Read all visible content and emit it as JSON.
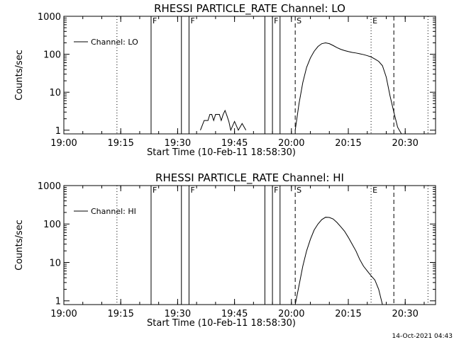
{
  "footer_timestamp": "14-Oct-2021 04:43",
  "chart_data": [
    {
      "type": "line",
      "title": "RHESSI PARTICLE_RATE Channel: LO",
      "xlabel": "Start Time (10-Feb-11 18:58:30)",
      "ylabel": "Counts/sec",
      "y_scale": "log",
      "ylim": [
        0.8,
        1000
      ],
      "y_tick_values": [
        1,
        10,
        100,
        1000
      ],
      "y_tick_labels": [
        "1",
        "10",
        "100",
        "1000"
      ],
      "xlim": [
        "19:00",
        "20:38"
      ],
      "x_tick_labels": [
        "19:00",
        "19:15",
        "19:30",
        "19:45",
        "20:00",
        "20:15",
        "20:30"
      ],
      "legend": {
        "position": "top-left",
        "entries": [
          "Channel: LO"
        ]
      },
      "vertical_markers": [
        {
          "label": "F",
          "time": "19:23",
          "style": "solid"
        },
        {
          "label": "",
          "time": "19:31",
          "style": "solid"
        },
        {
          "label": "F",
          "time": "19:33",
          "style": "solid"
        },
        {
          "label": "",
          "time": "19:53",
          "style": "solid"
        },
        {
          "label": "F",
          "time": "19:55",
          "style": "solid"
        },
        {
          "label": "",
          "time": "19:57",
          "style": "solid"
        },
        {
          "label": "S",
          "time": "20:01",
          "style": "dashed"
        },
        {
          "label": "E",
          "time": "20:21",
          "style": "dotted"
        },
        {
          "label": "",
          "time": "20:27",
          "style": "dashed"
        },
        {
          "label": "",
          "time": "19:14",
          "style": "dotted"
        },
        {
          "label": "",
          "time": "20:36",
          "style": "dotted"
        }
      ],
      "series": [
        {
          "name": "Channel: LO",
          "segments": [
            [
              [
                "19:36",
                1.0
              ],
              [
                "19:37",
                1.8
              ],
              [
                "19:38",
                1.8
              ],
              [
                "19:38.5",
                2.6
              ],
              [
                "19:39",
                2.6
              ],
              [
                "19:39.5",
                1.8
              ],
              [
                "19:40",
                2.6
              ],
              [
                "19:41",
                2.6
              ],
              [
                "19:41.5",
                1.8
              ],
              [
                "19:42",
                2.6
              ],
              [
                "19:42.5",
                3.3
              ],
              [
                "19:43",
                2.4
              ],
              [
                "19:43.5",
                1.7
              ],
              [
                "19:44",
                1.0
              ],
              [
                "19:45",
                1.7
              ],
              [
                "19:46",
                1.0
              ],
              [
                "19:47",
                1.5
              ],
              [
                "19:48",
                1.0
              ]
            ],
            [
              [
                "20:01",
                1.0
              ],
              [
                "20:02",
                5
              ],
              [
                "20:03",
                18
              ],
              [
                "20:04",
                45
              ],
              [
                "20:05",
                80
              ],
              [
                "20:06",
                120
              ],
              [
                "20:07",
                160
              ],
              [
                "20:08",
                190
              ],
              [
                "20:09",
                200
              ],
              [
                "20:10",
                190
              ],
              [
                "20:11",
                170
              ],
              [
                "20:12",
                150
              ],
              [
                "20:13",
                135
              ],
              [
                "20:14",
                125
              ],
              [
                "20:15",
                118
              ],
              [
                "20:16",
                112
              ],
              [
                "20:17",
                108
              ],
              [
                "20:18",
                103
              ],
              [
                "20:19",
                98
              ],
              [
                "20:20",
                92
              ],
              [
                "20:21",
                85
              ],
              [
                "20:22",
                75
              ],
              [
                "20:23",
                65
              ],
              [
                "20:24",
                50
              ],
              [
                "20:25",
                25
              ],
              [
                "20:26",
                8
              ],
              [
                "20:27",
                3
              ],
              [
                "20:28",
                1.2
              ],
              [
                "20:29",
                0.8
              ]
            ]
          ]
        }
      ]
    },
    {
      "type": "line",
      "title": "RHESSI PARTICLE_RATE Channel: HI",
      "xlabel": "Start Time (10-Feb-11 18:58:30)",
      "ylabel": "Counts/sec",
      "y_scale": "log",
      "ylim": [
        0.8,
        1000
      ],
      "y_tick_values": [
        1,
        10,
        100,
        1000
      ],
      "y_tick_labels": [
        "1",
        "10",
        "100",
        "1000"
      ],
      "xlim": [
        "19:00",
        "20:38"
      ],
      "x_tick_labels": [
        "19:00",
        "19:15",
        "19:30",
        "19:45",
        "20:00",
        "20:15",
        "20:30"
      ],
      "legend": {
        "position": "top-left",
        "entries": [
          "Channel: HI"
        ]
      },
      "vertical_markers": [
        {
          "label": "F",
          "time": "19:23",
          "style": "solid"
        },
        {
          "label": "",
          "time": "19:31",
          "style": "solid"
        },
        {
          "label": "F",
          "time": "19:33",
          "style": "solid"
        },
        {
          "label": "",
          "time": "19:53",
          "style": "solid"
        },
        {
          "label": "F",
          "time": "19:55",
          "style": "solid"
        },
        {
          "label": "",
          "time": "19:57",
          "style": "solid"
        },
        {
          "label": "S",
          "time": "20:01",
          "style": "dashed"
        },
        {
          "label": "E",
          "time": "20:21",
          "style": "dotted"
        },
        {
          "label": "",
          "time": "20:27",
          "style": "dashed"
        },
        {
          "label": "",
          "time": "19:14",
          "style": "dotted"
        },
        {
          "label": "",
          "time": "20:36",
          "style": "dotted"
        }
      ],
      "series": [
        {
          "name": "Channel: HI",
          "segments": [
            [
              [
                "20:01",
                0.8
              ],
              [
                "20:02",
                2.5
              ],
              [
                "20:03",
                8
              ],
              [
                "20:04",
                20
              ],
              [
                "20:05",
                40
              ],
              [
                "20:06",
                70
              ],
              [
                "20:07",
                100
              ],
              [
                "20:08",
                130
              ],
              [
                "20:09",
                150
              ],
              [
                "20:10",
                148
              ],
              [
                "20:11",
                135
              ],
              [
                "20:12",
                110
              ],
              [
                "20:13",
                85
              ],
              [
                "20:14",
                65
              ],
              [
                "20:15",
                45
              ],
              [
                "20:16",
                30
              ],
              [
                "20:17",
                20
              ],
              [
                "20:18",
                12
              ],
              [
                "20:19",
                8
              ],
              [
                "20:20",
                6
              ],
              [
                "20:21",
                4.5
              ],
              [
                "20:22",
                3.5
              ],
              [
                "20:23",
                2
              ],
              [
                "20:24",
                0.8
              ]
            ]
          ]
        }
      ]
    }
  ]
}
